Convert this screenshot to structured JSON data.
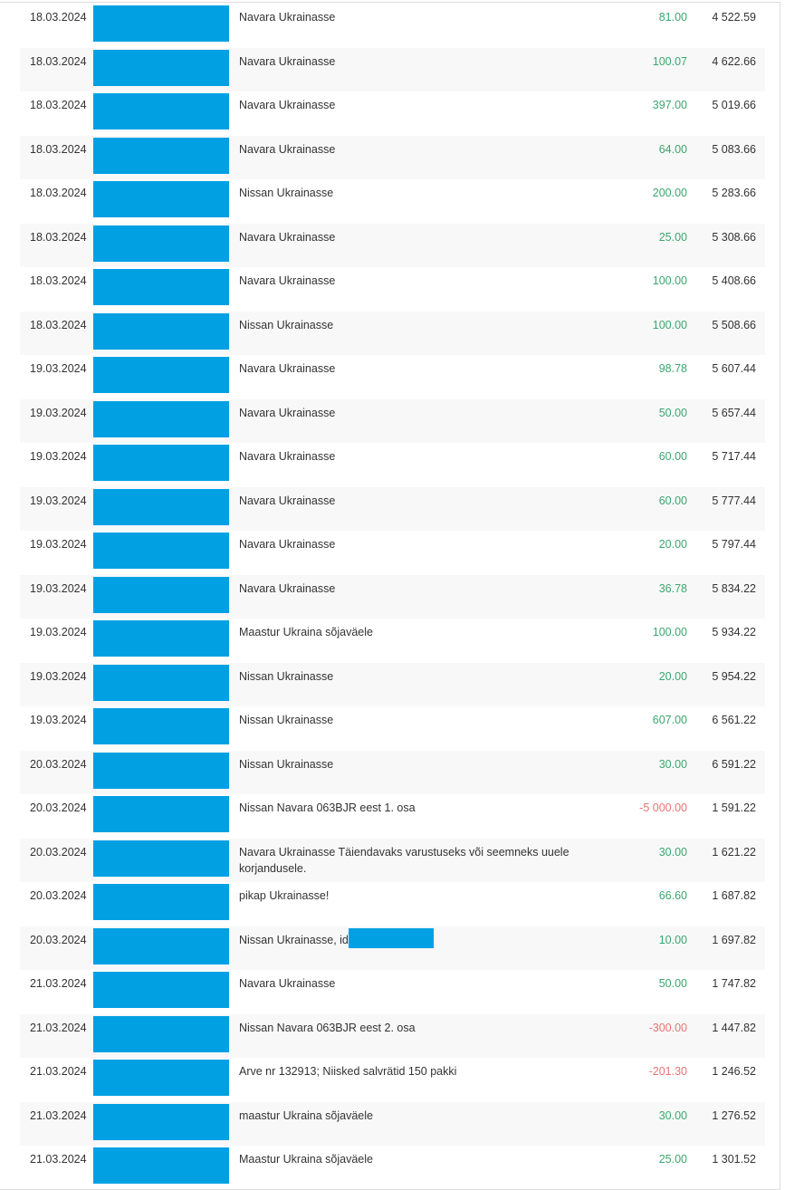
{
  "colors": {
    "positive": "#3aa76d",
    "negative": "#e87373",
    "redaction": "#00a0e3"
  },
  "transactions": [
    {
      "date": "18.03.2024",
      "description": "Navara Ukrainasse",
      "amount": "81.00",
      "balance": "4 522.59"
    },
    {
      "date": "18.03.2024",
      "description": "Navara Ukrainasse",
      "amount": "100.07",
      "balance": "4 622.66"
    },
    {
      "date": "18.03.2024",
      "description": "Navara Ukrainasse",
      "amount": "397.00",
      "balance": "5 019.66"
    },
    {
      "date": "18.03.2024",
      "description": "Navara Ukrainasse",
      "amount": "64.00",
      "balance": "5 083.66"
    },
    {
      "date": "18.03.2024",
      "description": "Nissan Ukrainasse",
      "amount": "200.00",
      "balance": "5 283.66"
    },
    {
      "date": "18.03.2024",
      "description": "Navara Ukrainasse",
      "amount": "25.00",
      "balance": "5 308.66"
    },
    {
      "date": "18.03.2024",
      "description": "Navara Ukrainasse",
      "amount": "100.00",
      "balance": "5 408.66"
    },
    {
      "date": "18.03.2024",
      "description": "Nissan Ukrainasse",
      "amount": "100.00",
      "balance": "5 508.66"
    },
    {
      "date": "19.03.2024",
      "description": "Navara Ukrainasse",
      "amount": "98.78",
      "balance": "5 607.44"
    },
    {
      "date": "19.03.2024",
      "description": "Navara Ukrainasse",
      "amount": "50.00",
      "balance": "5 657.44"
    },
    {
      "date": "19.03.2024",
      "description": "Navara Ukrainasse",
      "amount": "60.00",
      "balance": "5 717.44"
    },
    {
      "date": "19.03.2024",
      "description": "Navara Ukrainasse",
      "amount": "60.00",
      "balance": "5 777.44"
    },
    {
      "date": "19.03.2024",
      "description": "Navara Ukrainasse",
      "amount": "20.00",
      "balance": "5 797.44"
    },
    {
      "date": "19.03.2024",
      "description": "Navara Ukrainasse",
      "amount": "36.78",
      "balance": "5 834.22"
    },
    {
      "date": "19.03.2024",
      "description": "Maastur Ukraina sõjaväele",
      "amount": "100.00",
      "balance": "5 934.22"
    },
    {
      "date": "19.03.2024",
      "description": "Nissan Ukrainasse",
      "amount": "20.00",
      "balance": "5 954.22"
    },
    {
      "date": "19.03.2024",
      "description": "Nissan Ukrainasse",
      "amount": "607.00",
      "balance": "6 561.22"
    },
    {
      "date": "20.03.2024",
      "description": "Nissan Ukrainasse",
      "amount": "30.00",
      "balance": "6 591.22"
    },
    {
      "date": "20.03.2024",
      "description": "Nissan Navara 063BJR eest 1. osa",
      "amount": "-5 000.00",
      "balance": "1 591.22"
    },
    {
      "date": "20.03.2024",
      "description": "Navara Ukrainasse Täiendavaks varustuseks või seemneks uuele korjandusele.",
      "amount": "30.00",
      "balance": "1 621.22"
    },
    {
      "date": "20.03.2024",
      "description": "pikap Ukrainasse!",
      "amount": "66.60",
      "balance": "1 687.82"
    },
    {
      "date": "20.03.2024",
      "description": "Nissan Ukrainasse, id",
      "amount": "10.00",
      "balance": "1 697.82",
      "redacted_inline": true
    },
    {
      "date": "21.03.2024",
      "description": "Navara Ukrainasse",
      "amount": "50.00",
      "balance": "1 747.82"
    },
    {
      "date": "21.03.2024",
      "description": "Nissan Navara 063BJR eest 2. osa",
      "amount": "-300.00",
      "balance": "1 447.82"
    },
    {
      "date": "21.03.2024",
      "description": "Arve nr 132913; Niisked salvrätid 150 pakki",
      "amount": "-201.30",
      "balance": "1 246.52"
    },
    {
      "date": "21.03.2024",
      "description": "maastur Ukraina sõjaväele",
      "amount": "30.00",
      "balance": "1 276.52"
    },
    {
      "date": "21.03.2024",
      "description": "Maastur Ukraina sõjaväele",
      "amount": "25.00",
      "balance": "1 301.52"
    }
  ]
}
